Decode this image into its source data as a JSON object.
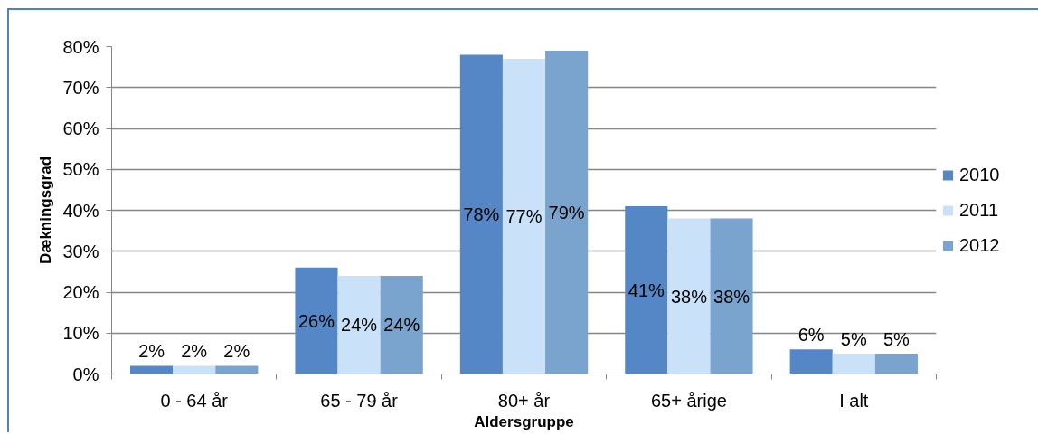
{
  "chart_data": {
    "type": "bar",
    "xlabel": "Aldersgruppe",
    "ylabel": "Dækningsgrad",
    "categories": [
      "0 - 64 år",
      "65 - 79 år",
      "80+ år",
      "65+ årige",
      "I alt"
    ],
    "series": [
      {
        "name": "2010",
        "color": "#5587c6",
        "values": [
          2,
          26,
          78,
          41,
          6
        ],
        "value_labels": [
          "2%",
          "26%",
          "78%",
          "41%",
          "6%"
        ]
      },
      {
        "name": "2011",
        "color": "#c9e2fa",
        "values": [
          2,
          24,
          77,
          38,
          5
        ],
        "value_labels": [
          "2%",
          "24%",
          "77%",
          "38%",
          "5%"
        ]
      },
      {
        "name": "2012",
        "color": "#7aa3cd",
        "values": [
          2,
          24,
          79,
          38,
          5
        ],
        "value_labels": [
          "2%",
          "24%",
          "79%",
          "38%",
          "5%"
        ]
      }
    ],
    "ylim": [
      0,
      80
    ],
    "yticks": [
      {
        "value": 0,
        "label": "0%"
      },
      {
        "value": 10,
        "label": "10%"
      },
      {
        "value": 20,
        "label": "20%"
      },
      {
        "value": 30,
        "label": "30%"
      },
      {
        "value": 40,
        "label": "40%"
      },
      {
        "value": 50,
        "label": "50%"
      },
      {
        "value": 60,
        "label": "60%"
      },
      {
        "value": 70,
        "label": "70%"
      },
      {
        "value": 80,
        "label": "80%"
      }
    ],
    "grid": "y",
    "legend": "right"
  }
}
